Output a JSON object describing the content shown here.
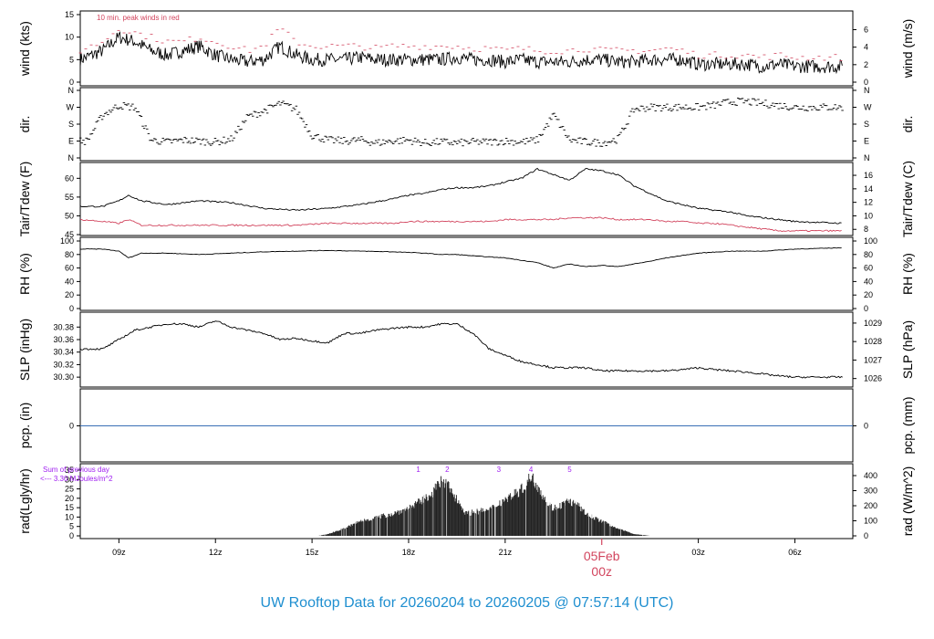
{
  "title": "UW Rooftop Data for 20260204  to  20260205 @ 07:57:14  (UTC)",
  "date_label": "05Feb",
  "date_hour": "00z",
  "colors": {
    "black": "#000000",
    "red": "#d2455e",
    "blue": "#3a6fb5",
    "purple": "#a020f0",
    "title": "#1f8fd0"
  },
  "chart_data": [
    {
      "type": "line",
      "name_key": "wind",
      "ylabel_left": "wind (kts)",
      "ylabel_right": "wind (m/s)",
      "annotation": "10 min. peak winds in red",
      "ylim": [
        0,
        15
      ],
      "left_ticks": [
        "0",
        "5",
        "10",
        "15"
      ],
      "right_ticks": [
        "0",
        "2",
        "4",
        "6"
      ],
      "x": [
        7.8,
        8.5,
        9.0,
        9.5,
        10.0,
        10.5,
        11.0,
        11.5,
        12.0,
        12.5,
        13.0,
        13.5,
        14.0,
        14.5,
        15.0,
        15.5,
        16.0,
        16.5,
        17.0,
        17.5,
        18.0,
        18.5,
        19.0,
        19.5,
        20.0,
        20.5,
        21.0,
        21.5,
        22.0,
        22.5,
        23.0,
        23.5,
        24.0,
        24.5,
        25.0,
        25.5,
        26.0,
        26.5,
        27.0,
        27.5,
        28.0,
        28.5,
        29.0,
        29.5,
        30.0,
        31.5
      ],
      "series": [
        {
          "values": [
            5,
            7,
            10,
            9,
            7,
            6,
            7,
            8,
            6,
            5,
            4.5,
            5,
            8,
            6,
            5,
            5,
            5,
            5.5,
            5,
            5,
            5,
            5,
            5,
            5.5,
            5,
            5,
            4.5,
            5,
            4.5,
            4.5,
            4.5,
            5,
            5,
            4.5,
            4.5,
            5,
            5,
            5,
            4,
            4,
            4,
            4,
            3.5,
            4,
            3.5,
            3.5
          ]
        },
        {
          "values": [
            7,
            9,
            12,
            11,
            10,
            9,
            9,
            10,
            9,
            8,
            7,
            8,
            12,
            9,
            8,
            8,
            8,
            8,
            7.5,
            8,
            8,
            8,
            8,
            8,
            7.5,
            7.5,
            7,
            7.5,
            7,
            7,
            7,
            7.5,
            7,
            7,
            7,
            7,
            7.5,
            7,
            6,
            6,
            6,
            6,
            5.5,
            6,
            5.5,
            5.5
          ]
        }
      ]
    },
    {
      "type": "scatter",
      "name_key": "dir",
      "ylabel_left": "dir.",
      "ylabel_right": "dir.",
      "left_ticks": [
        "N",
        "E",
        "S",
        "W",
        "N"
      ],
      "right_ticks": [
        "N",
        "E",
        "S",
        "W",
        "N"
      ],
      "x": [
        8.0,
        8.5,
        9.0,
        9.5,
        10.0,
        10.5,
        11.0,
        11.5,
        12.0,
        12.5,
        13.0,
        13.5,
        14.0,
        14.5,
        15.0,
        15.5,
        16.0,
        16.5,
        17.0,
        17.5,
        18.0,
        18.5,
        19.0,
        19.5,
        20.0,
        20.5,
        21.0,
        21.5,
        22.0,
        22.5,
        23.0,
        23.5,
        24.0,
        24.5,
        25.0,
        25.5,
        26.0,
        26.5,
        27.0,
        27.5,
        28.0,
        28.5,
        29.0,
        29.5,
        30.0,
        31.5
      ],
      "series": [
        {
          "values": [
            90,
            230,
            280,
            270,
            95,
            85,
            95,
            90,
            85,
            100,
            220,
            250,
            290,
            260,
            120,
            95,
            90,
            95,
            80,
            90,
            95,
            80,
            85,
            80,
            85,
            85,
            90,
            85,
            95,
            230,
            95,
            85,
            80,
            100,
            260,
            270,
            270,
            270,
            270,
            280,
            300,
            300,
            290,
            280,
            270,
            270
          ]
        }
      ]
    },
    {
      "type": "line",
      "name_key": "temp",
      "ylabel_left": "Tair/Tdew (F)",
      "ylabel_right": "Tair/Tdew (C)",
      "ylim": [
        45,
        63
      ],
      "left_ticks": [
        "45",
        "50",
        "55",
        "60"
      ],
      "right_ticks": [
        "8",
        "10",
        "12",
        "14",
        "16"
      ],
      "x": [
        7.8,
        8.5,
        9.0,
        9.3,
        9.7,
        10.5,
        11.5,
        12.5,
        13.5,
        14.5,
        15.5,
        16.5,
        17.5,
        18.0,
        18.5,
        19.0,
        19.5,
        20.0,
        20.5,
        21.0,
        21.5,
        22.0,
        22.5,
        23.0,
        23.5,
        24.0,
        24.5,
        25.0,
        25.5,
        26.0,
        26.5,
        27.0,
        27.5,
        28.0,
        28.5,
        29.0,
        29.5,
        30.0,
        31.5
      ],
      "series": [
        {
          "values": [
            52.5,
            52.5,
            54,
            55.5,
            54,
            53,
            54,
            53.5,
            52,
            51.5,
            52,
            53,
            54.5,
            55.5,
            56,
            57,
            57.5,
            57.5,
            58,
            59,
            60,
            62.5,
            61,
            59.5,
            62.5,
            62,
            61,
            58,
            56,
            54,
            53,
            52,
            51.5,
            51,
            50,
            49.5,
            49,
            48.5,
            48
          ]
        },
        {
          "values": [
            49,
            48.5,
            48,
            49,
            47.5,
            47.5,
            47.5,
            47.5,
            47.5,
            47.5,
            48,
            48,
            48,
            48.5,
            48.5,
            48.5,
            48.5,
            48.5,
            48.5,
            49,
            49,
            49,
            49,
            49.5,
            49.5,
            49.5,
            49,
            49,
            49,
            48.5,
            48.5,
            48,
            48,
            47.5,
            47,
            46.5,
            46,
            46,
            46
          ]
        }
      ]
    },
    {
      "type": "line",
      "name_key": "rh",
      "ylabel_left": "RH (%)",
      "ylabel_right": "RH (%)",
      "ylim": [
        0,
        100
      ],
      "left_ticks": [
        "0",
        "20",
        "40",
        "60",
        "80",
        "100"
      ],
      "right_ticks": [
        "0",
        "20",
        "40",
        "60",
        "80",
        "100"
      ],
      "x": [
        7.8,
        8.5,
        9.0,
        9.3,
        9.7,
        10.5,
        11.5,
        12.5,
        13.5,
        14.5,
        15.5,
        16.5,
        17.5,
        18.5,
        19.0,
        19.5,
        20.0,
        21.0,
        22.0,
        22.5,
        23.0,
        23.5,
        24.0,
        24.5,
        25.0,
        25.5,
        26.0,
        27.0,
        28.0,
        29.0,
        30.0,
        31.5
      ],
      "series": [
        {
          "values": [
            88,
            88,
            85,
            75,
            82,
            82,
            80,
            82,
            84,
            85,
            86,
            85,
            84,
            82,
            80,
            80,
            78,
            75,
            68,
            60,
            66,
            62,
            64,
            62,
            66,
            70,
            75,
            82,
            85,
            85,
            88,
            90
          ]
        }
      ]
    },
    {
      "type": "line",
      "name_key": "slp",
      "ylabel_left": "SLP (inHg)",
      "ylabel_right": "SLP (hPa)",
      "ylim": [
        30.29,
        30.395
      ],
      "left_ticks": [
        "30.30",
        "30.32",
        "30.34",
        "30.36",
        "30.38"
      ],
      "right_ticks": [
        "1026",
        "1027",
        "1028",
        "1029"
      ],
      "x": [
        7.8,
        8.5,
        9.0,
        9.5,
        10.0,
        10.5,
        11.0,
        11.5,
        12.0,
        12.5,
        13.0,
        13.5,
        14.0,
        14.5,
        15.0,
        15.5,
        16.0,
        16.5,
        17.0,
        17.5,
        18.0,
        18.5,
        19.0,
        19.5,
        20.0,
        20.5,
        21.0,
        21.5,
        22.0,
        22.5,
        23.0,
        23.5,
        24.0,
        24.5,
        25.0,
        25.5,
        26.0,
        26.5,
        27.0,
        27.5,
        28.0,
        28.5,
        29.0,
        29.5,
        30.0,
        31.5
      ],
      "series": [
        {
          "values": [
            30.345,
            30.345,
            30.36,
            30.375,
            30.38,
            30.385,
            30.385,
            30.38,
            30.39,
            30.38,
            30.375,
            30.37,
            30.36,
            30.362,
            30.358,
            30.355,
            30.37,
            30.37,
            30.375,
            30.378,
            30.38,
            30.38,
            30.385,
            30.385,
            30.37,
            30.345,
            30.335,
            30.325,
            30.32,
            30.315,
            30.315,
            30.315,
            30.31,
            30.31,
            30.31,
            30.31,
            30.31,
            30.312,
            30.315,
            30.312,
            30.31,
            30.308,
            30.305,
            30.302,
            30.3,
            30.3
          ]
        }
      ]
    },
    {
      "type": "line",
      "name_key": "pcp",
      "ylabel_left": "pcp. (in)",
      "ylabel_right": "pcp. (mm)",
      "left_ticks": [
        "0"
      ],
      "right_ticks": [
        "0"
      ],
      "x": [
        7.8,
        31.5
      ],
      "series": [
        {
          "values": [
            0,
            0
          ]
        }
      ]
    },
    {
      "type": "bar",
      "name_key": "rad",
      "ylabel_left": "rad(Lgly/hr)",
      "ylabel_right": "rad (W/m^2)",
      "annotation_lines": [
        "Sum of previous day",
        "<--- 3.30 MJoules/m^2"
      ],
      "ylim": [
        0,
        35
      ],
      "left_ticks": [
        "0",
        "5",
        "10",
        "15",
        "20",
        "25",
        "30",
        "35"
      ],
      "right_ticks": [
        "0",
        "100",
        "200",
        "300",
        "400"
      ],
      "hour_marks": [
        "1",
        "2",
        "3",
        "4",
        "5"
      ],
      "hour_marks_x": [
        18.3,
        19.2,
        20.8,
        21.8,
        23.0
      ],
      "x": [
        15.2,
        15.5,
        16.0,
        16.5,
        17.0,
        17.5,
        18.0,
        18.5,
        18.8,
        19.0,
        19.2,
        19.5,
        19.8,
        20.0,
        20.5,
        21.0,
        21.5,
        21.8,
        22.0,
        22.3,
        22.5,
        23.0,
        23.3,
        23.5,
        24.0,
        24.5,
        25.0,
        25.5
      ],
      "series": [
        {
          "values": [
            0,
            1,
            4,
            8,
            10,
            12,
            15,
            20,
            25,
            29,
            28,
            20,
            12,
            13,
            14,
            20,
            25,
            32,
            28,
            18,
            15,
            19,
            16,
            12,
            8,
            4,
            1,
            0
          ]
        }
      ]
    }
  ],
  "x_axis": {
    "ticks": [
      "09z",
      "12z",
      "15z",
      "18z",
      "21z",
      "03z",
      "06z"
    ],
    "tick_x": [
      9,
      12,
      15,
      18,
      21,
      27,
      30
    ],
    "midnight_x": 24,
    "range": [
      7.8,
      31.8
    ]
  }
}
